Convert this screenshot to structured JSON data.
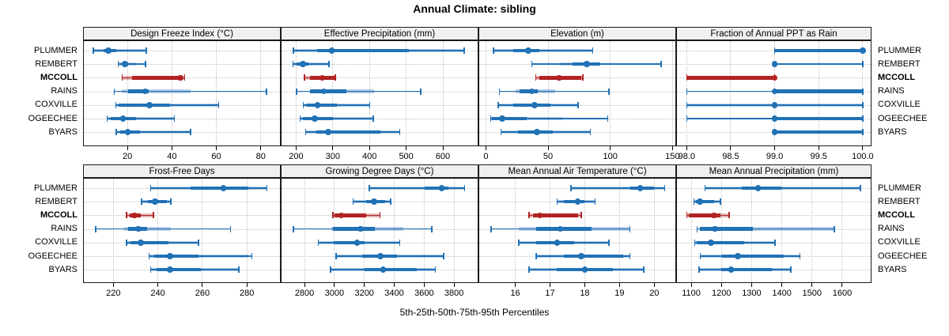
{
  "title": "Annual Climate: sibling",
  "xlabel": "5th-25th-50th-75th-95th Percentiles",
  "stations": [
    "PLUMMER",
    "REMBERT",
    "MCCOLL",
    "RAINS",
    "COXVILLE",
    "OGEECHEE",
    "BYARS"
  ],
  "highlight_station": "MCCOLL",
  "colors": {
    "series": "#2171b5",
    "highlight": "#b22222",
    "band_alpha": 0.32,
    "strip_bg": "#f0f0f0",
    "grid": "#c3c3c3",
    "border": "#1a1a1a"
  },
  "chart_data": {
    "type": "scatter",
    "subtype": "trellis of horizontal percentile interval plots (dot = 50th, thick segment = 25th-75th, pale band = extended range, thin line with end caps = 5th-95th)",
    "legend": "blue = sibling soil series, red = highlighted series MCCOLL",
    "grid_layout": {
      "rows": 2,
      "cols": 4
    },
    "panels": [
      {
        "title": "Design Freeze Index (°C)",
        "grid_row": 0,
        "grid_col": 0,
        "xlim": [
          0,
          89
        ],
        "ticks": [
          20,
          40,
          60,
          80
        ],
        "tick_labels": [
          "20",
          "40",
          "60",
          "80"
        ],
        "series": [
          {
            "station": "PLUMMER",
            "p": [
              4.7,
              9.1,
              11.4,
              15.0,
              28.5
            ],
            "band": [
              4.7,
              28.5
            ]
          },
          {
            "station": "REMBERT",
            "p": [
              15.9,
              17.3,
              18.8,
              20.2,
              28.1
            ],
            "band": [
              15.9,
              23.8
            ]
          },
          {
            "station": "MCCOLL",
            "p": [
              17.7,
              22.0,
              43.8,
              44.2,
              45.7
            ],
            "band": [
              17.7,
              45.7
            ]
          },
          {
            "station": "RAINS",
            "p": [
              14.1,
              20.2,
              27.9,
              29.7,
              82.6
            ],
            "band": [
              17.3,
              48.5
            ]
          },
          {
            "station": "COXVILLE",
            "p": [
              14.7,
              16.1,
              29.9,
              39.0,
              61.1
            ],
            "band": [
              14.7,
              61.1
            ]
          },
          {
            "station": "OGEECHEE",
            "p": [
              10.8,
              12.6,
              17.9,
              23.8,
              41.2
            ],
            "band": [
              10.8,
              41.2
            ]
          },
          {
            "station": "BYARS",
            "p": [
              15.0,
              16.7,
              20.2,
              25.5,
              48.4
            ],
            "band": [
              15.0,
              48.4
            ]
          }
        ]
      },
      {
        "title": "Effective Precipitation (mm)",
        "grid_row": 0,
        "grid_col": 1,
        "xlim": [
          158,
          697
        ],
        "ticks": [
          200,
          300,
          400,
          500,
          600
        ],
        "tick_labels": [
          "200",
          "300",
          "400",
          "500",
          "600"
        ],
        "series": [
          {
            "station": "PLUMMER",
            "p": [
              192,
              258,
              297,
              508,
              658
            ],
            "band": [
              192,
              658
            ]
          },
          {
            "station": "REMBERT",
            "p": [
              191,
              201,
              218,
              233,
              289
            ],
            "band": [
              191,
              287
            ]
          },
          {
            "station": "MCCOLL",
            "p": [
              223,
              237,
              271,
              305,
              307
            ],
            "band": [
              223,
              307
            ]
          },
          {
            "station": "RAINS",
            "p": [
              201,
              237,
              276,
              337,
              540
            ],
            "band": [
              237,
              412
            ]
          },
          {
            "station": "COXVILLE",
            "p": [
              219,
              230,
              258,
              312,
              401
            ],
            "band": [
              219,
              401
            ]
          },
          {
            "station": "OGEECHEE",
            "p": [
              211,
              219,
              251,
              301,
              410
            ],
            "band": [
              211,
              410
            ]
          },
          {
            "station": "BYARS",
            "p": [
              226,
              255,
              287,
              430,
              482
            ],
            "band": [
              226,
              482
            ]
          }
        ]
      },
      {
        "title": "Elevation (m)",
        "grid_row": 0,
        "grid_col": 2,
        "xlim": [
          -6,
          153
        ],
        "ticks": [
          0,
          50,
          100,
          150
        ],
        "tick_labels": [
          "0",
          "50",
          "100",
          "150"
        ],
        "series": [
          {
            "station": "PLUMMER",
            "p": [
              6,
              22,
              34,
              43,
              86
            ],
            "band": [
              6,
              86
            ]
          },
          {
            "station": "REMBERT",
            "p": [
              37,
              70,
              81,
              92,
              141
            ],
            "band": [
              60,
              92
            ]
          },
          {
            "station": "MCCOLL",
            "p": [
              40,
              43,
              59,
              77,
              78
            ],
            "band": [
              40,
              78
            ]
          },
          {
            "station": "RAINS",
            "p": [
              11,
              27,
              37,
              42,
              99
            ],
            "band": [
              24,
              56
            ]
          },
          {
            "station": "COXVILLE",
            "p": [
              10,
              22,
              39,
              52,
              74
            ],
            "band": [
              10,
              74
            ]
          },
          {
            "station": "OGEECHEE",
            "p": [
              4,
              5,
              13,
              33,
              98
            ],
            "band": [
              4,
              62
            ]
          },
          {
            "station": "BYARS",
            "p": [
              12,
              26,
              41,
              54,
              84
            ],
            "band": [
              12,
              84
            ]
          }
        ]
      },
      {
        "title": "Fraction of Annual PPT as Rain",
        "grid_row": 0,
        "grid_col": 3,
        "xlim": [
          97.88,
          100.1
        ],
        "ticks": [
          98.0,
          98.5,
          99.0,
          99.5,
          100.0
        ],
        "tick_labels": [
          "98.0",
          "98.5",
          "99.0",
          "99.5",
          "100.0"
        ],
        "series": [
          {
            "station": "PLUMMER",
            "p": [
              99,
              99,
              100,
              100,
              100
            ],
            "band": [
              99,
              100
            ]
          },
          {
            "station": "REMBERT",
            "p": [
              99,
              99,
              99,
              99,
              100
            ],
            "band": [
              99,
              99
            ]
          },
          {
            "station": "MCCOLL",
            "p": [
              98,
              98,
              99,
              99,
              99
            ],
            "band": [
              98,
              99
            ]
          },
          {
            "station": "RAINS",
            "p": [
              98,
              99,
              99,
              100,
              100
            ],
            "band": [
              99,
              100
            ]
          },
          {
            "station": "COXVILLE",
            "p": [
              98,
              99,
              99,
              99,
              100
            ],
            "band": [
              98,
              100
            ]
          },
          {
            "station": "OGEECHEE",
            "p": [
              98,
              99,
              99,
              100,
              100
            ],
            "band": [
              99,
              100
            ]
          },
          {
            "station": "BYARS",
            "p": [
              99,
              99,
              99,
              100,
              100
            ],
            "band": [
              99,
              100
            ]
          }
        ]
      },
      {
        "title": "Frost-Free Days",
        "grid_row": 1,
        "grid_col": 0,
        "xlim": [
          206.4,
          295.2
        ],
        "ticks": [
          220,
          240,
          260,
          280
        ],
        "tick_labels": [
          "220",
          "240",
          "260",
          "280"
        ],
        "series": [
          {
            "station": "PLUMMER",
            "p": [
              236.8,
              254.7,
              269.4,
              280.5,
              289.0
            ],
            "band": [
              236.8,
              289.0
            ]
          },
          {
            "station": "REMBERT",
            "p": [
              232.6,
              235.6,
              238.8,
              244.1,
              245.9
            ],
            "band": [
              232.6,
              245.9
            ]
          },
          {
            "station": "MCCOLL",
            "p": [
              225.9,
              227.5,
              229.4,
              232.3,
              238.0
            ],
            "band": [
              225.9,
              238.0
            ]
          },
          {
            "station": "RAINS",
            "p": [
              212.0,
              226.5,
              231.2,
              235.3,
              272.6
            ],
            "band": [
              225.0,
              245.9
            ]
          },
          {
            "station": "COXVILLE",
            "p": [
              225.9,
              227.6,
              232.3,
              244.7,
              258.2
            ],
            "band": [
              225.9,
              258.2
            ]
          },
          {
            "station": "OGEECHEE",
            "p": [
              236.1,
              238.2,
              245.5,
              258.2,
              282.3
            ],
            "band": [
              236.1,
              280.5
            ]
          },
          {
            "station": "BYARS",
            "p": [
              236.8,
              239.6,
              245.5,
              259.4,
              276.4
            ],
            "band": [
              236.8,
              276.4
            ]
          }
        ]
      },
      {
        "title": "Growing Degree Days (°C)",
        "grid_row": 1,
        "grid_col": 1,
        "xlim": [
          2641,
          3963
        ],
        "ticks": [
          2800,
          3000,
          3200,
          3400,
          3600,
          3800
        ],
        "tick_labels": [
          "2800",
          "3000",
          "3200",
          "3400",
          "3600",
          "3800"
        ],
        "series": [
          {
            "station": "PLUMMER",
            "p": [
              3232,
              3605,
              3718,
              3762,
              3870
            ],
            "band": [
              3232,
              3870
            ]
          },
          {
            "station": "REMBERT",
            "p": [
              3124,
              3210,
              3264,
              3340,
              3375
            ],
            "band": [
              3124,
              3375
            ]
          },
          {
            "station": "MCCOLL",
            "p": [
              2989,
              3001,
              3045,
              3211,
              3304
            ],
            "band": [
              2989,
              3304
            ]
          },
          {
            "station": "RAINS",
            "p": [
              2725,
              2990,
              3176,
              3270,
              3650
            ],
            "band": [
              2980,
              3460
            ]
          },
          {
            "station": "COXVILLE",
            "p": [
              2893,
              2993,
              3150,
              3202,
              3436
            ],
            "band": [
              2893,
              3436
            ]
          },
          {
            "station": "OGEECHEE",
            "p": [
              3010,
              3185,
              3307,
              3421,
              3731
            ],
            "band": [
              3010,
              3731
            ]
          },
          {
            "station": "BYARS",
            "p": [
              2975,
              3202,
              3325,
              3552,
              3675
            ],
            "band": [
              2975,
              3675
            ]
          }
        ]
      },
      {
        "title": "Mean Annual Air Temperature (°C)",
        "grid_row": 1,
        "grid_col": 2,
        "xlim": [
          14.94,
          20.63
        ],
        "ticks": [
          16,
          17,
          18,
          19,
          20
        ],
        "tick_labels": [
          "16",
          "17",
          "18",
          "19",
          "20"
        ],
        "series": [
          {
            "station": "PLUMMER",
            "p": [
              17.6,
              19.3,
              19.6,
              20.0,
              20.3
            ],
            "band": [
              17.6,
              20.3
            ]
          },
          {
            "station": "REMBERT",
            "p": [
              17.2,
              17.4,
              17.8,
              18.0,
              18.3
            ],
            "band": [
              17.2,
              18.3
            ]
          },
          {
            "station": "MCCOLL",
            "p": [
              16.4,
              16.5,
              16.7,
              17.8,
              17.9
            ],
            "band": [
              16.4,
              17.9
            ]
          },
          {
            "station": "RAINS",
            "p": [
              15.3,
              16.6,
              17.3,
              18.2,
              19.3
            ],
            "band": [
              16.1,
              19.3
            ]
          },
          {
            "station": "COXVILLE",
            "p": [
              16.1,
              16.6,
              17.2,
              17.7,
              18.7
            ],
            "band": [
              16.1,
              18.7
            ]
          },
          {
            "station": "OGEECHEE",
            "p": [
              16.6,
              17.4,
              17.9,
              19.1,
              19.3
            ],
            "band": [
              16.6,
              19.3
            ]
          },
          {
            "station": "BYARS",
            "p": [
              16.4,
              17.2,
              18.0,
              18.8,
              19.7
            ],
            "band": [
              16.4,
              19.7
            ]
          }
        ]
      },
      {
        "title": "Mean Annual Precipitation (mm)",
        "grid_row": 1,
        "grid_col": 3,
        "xlim": [
          1050,
          1697
        ],
        "ticks": [
          1100,
          1200,
          1300,
          1400,
          1500,
          1600
        ],
        "tick_labels": [
          "1100",
          "1200",
          "1300",
          "1400",
          "1500",
          "1600"
        ],
        "series": [
          {
            "station": "PLUMMER",
            "p": [
              1145,
              1267,
              1321,
              1398,
              1660
            ],
            "band": [
              1145,
              1660
            ]
          },
          {
            "station": "REMBERT",
            "p": [
              1109,
              1115,
              1128,
              1176,
              1197
            ],
            "band": [
              1109,
              1197
            ]
          },
          {
            "station": "MCCOLL",
            "p": [
              1085,
              1091,
              1176,
              1196,
              1225
            ],
            "band": [
              1085,
              1225
            ]
          },
          {
            "station": "RAINS",
            "p": [
              1119,
              1128,
              1179,
              1305,
              1574
            ],
            "band": [
              1128,
              1570
            ]
          },
          {
            "station": "COXVILLE",
            "p": [
              1112,
              1119,
              1165,
              1274,
              1377
            ],
            "band": [
              1112,
              1377
            ]
          },
          {
            "station": "OGEECHEE",
            "p": [
              1130,
              1202,
              1254,
              1405,
              1460
            ],
            "band": [
              1130,
              1460
            ]
          },
          {
            "station": "BYARS",
            "p": [
              1126,
              1198,
              1232,
              1367,
              1430
            ],
            "band": [
              1126,
              1430
            ]
          }
        ]
      }
    ]
  }
}
